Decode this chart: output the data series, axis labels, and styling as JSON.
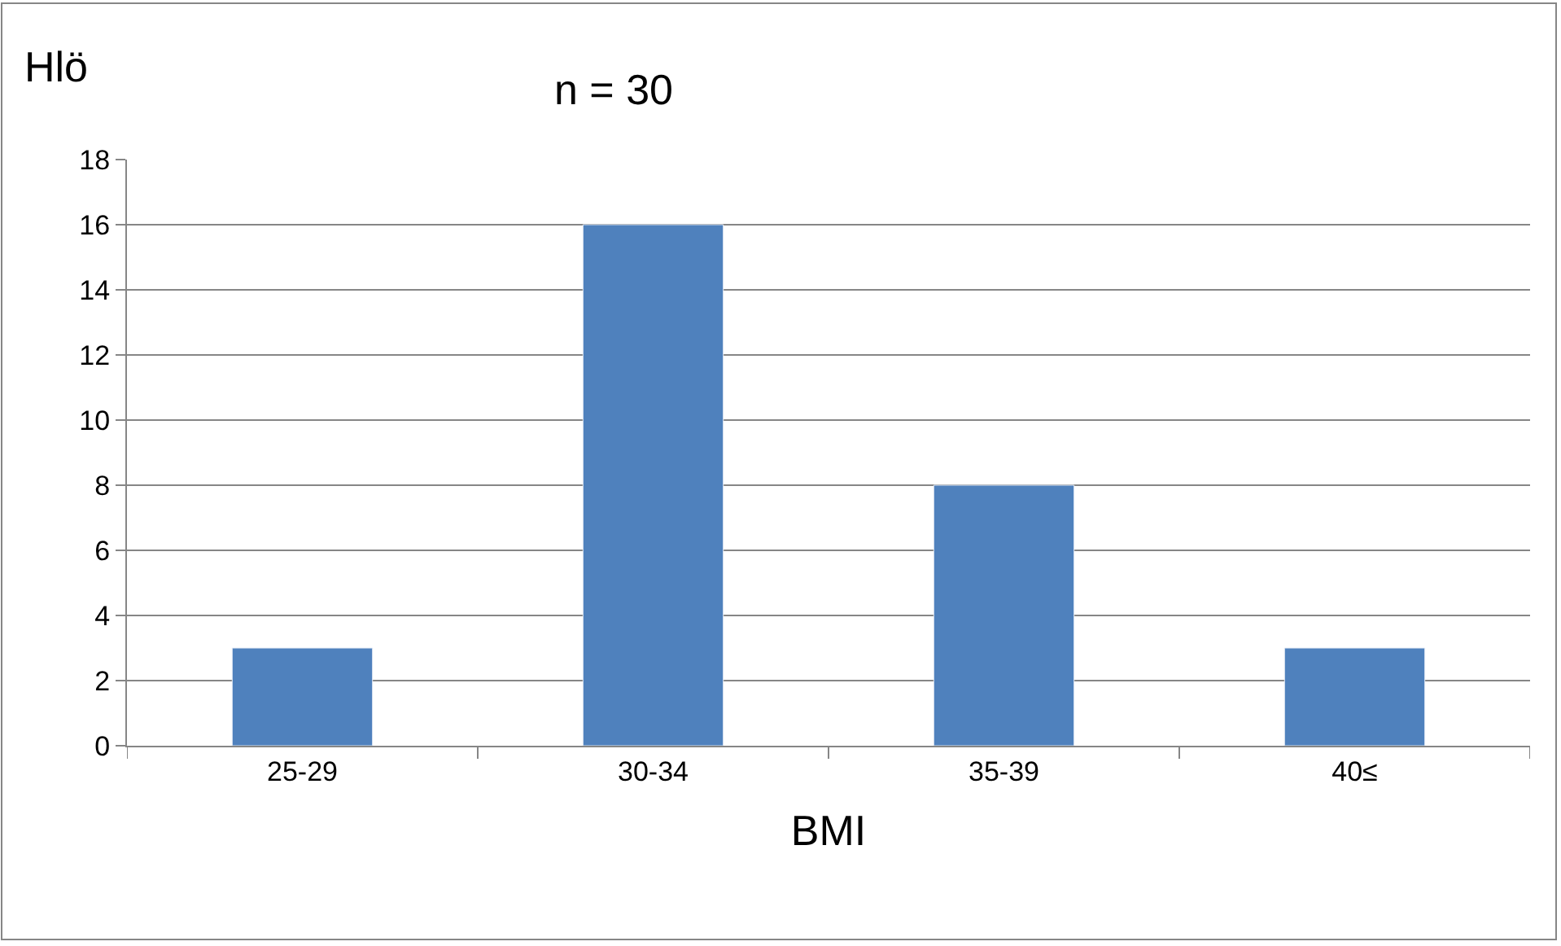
{
  "chart_data": {
    "type": "bar",
    "title": "n = 30",
    "ylabel": "Hlö",
    "xlabel": "BMI",
    "categories": [
      "25-29",
      "30-34",
      "35-39",
      "40≤"
    ],
    "series": [
      {
        "color": "#4f81bd",
        "values": [
          3,
          16,
          8,
          3
        ]
      }
    ],
    "ylim": [
      0,
      18
    ],
    "yticks": [
      0,
      2,
      4,
      6,
      8,
      10,
      12,
      14,
      16,
      18
    ],
    "grid": "y",
    "legend": false
  }
}
